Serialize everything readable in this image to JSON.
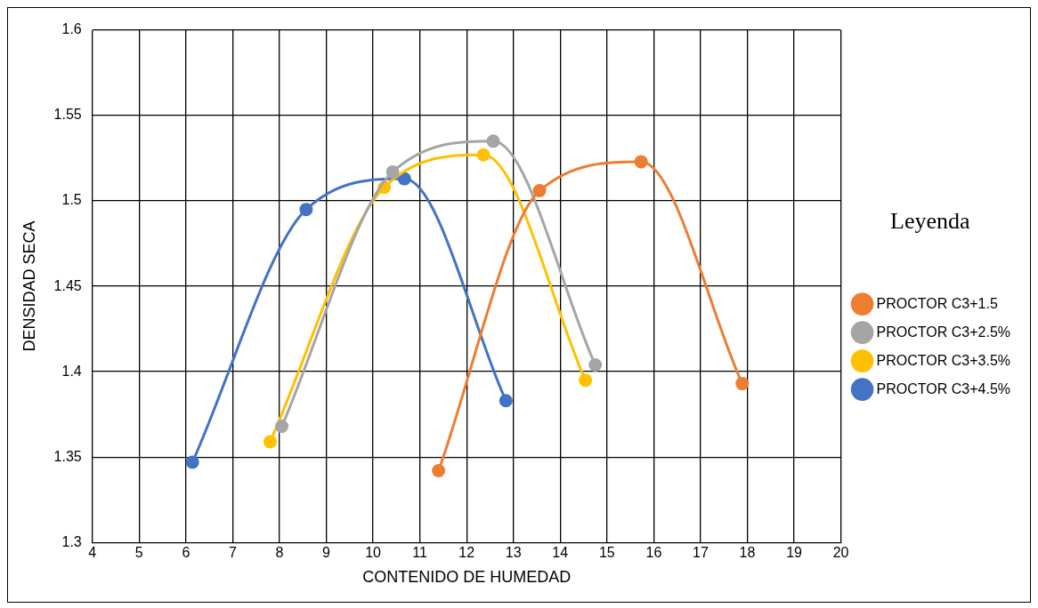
{
  "chart_data": {
    "type": "line",
    "xlabel": "CONTENIDO DE HUMEDAD",
    "ylabel": "DENSIDAD SECA",
    "legend_title": "Leyenda",
    "legend": "right",
    "grid": true,
    "marker": "circle",
    "line_style": "solid",
    "xlim": [
      4,
      20
    ],
    "xticks": [
      4,
      5,
      6,
      7,
      8,
      9,
      10,
      11,
      12,
      13,
      14,
      15,
      16,
      17,
      18,
      19,
      20
    ],
    "ylim": [
      1.3,
      1.6
    ],
    "yticks": [
      1.3,
      1.35,
      1.4,
      1.45,
      1.5,
      1.55,
      1.6
    ],
    "series": [
      {
        "name": "PROCTOR C3+1.5",
        "color": "#ed7d31",
        "x": [
          11.4,
          13.56,
          15.73,
          17.89
        ],
        "values": [
          1.342,
          1.506,
          1.523,
          1.393
        ]
      },
      {
        "name": "PROCTOR C3+2.5%",
        "color": "#a5a5a5",
        "x": [
          8.05,
          10.42,
          12.57,
          14.75
        ],
        "values": [
          1.368,
          1.517,
          1.535,
          1.404
        ]
      },
      {
        "name": "PROCTOR C3+3.5%",
        "color": "#ffc000",
        "x": [
          7.8,
          10.24,
          12.36,
          14.54
        ],
        "values": [
          1.359,
          1.508,
          1.527,
          1.395
        ]
      },
      {
        "name": "PROCTOR C3+4.5%",
        "color": "#4472c4",
        "x": [
          6.14,
          8.57,
          10.67,
          12.84
        ],
        "values": [
          1.347,
          1.495,
          1.513,
          1.383
        ]
      }
    ]
  }
}
